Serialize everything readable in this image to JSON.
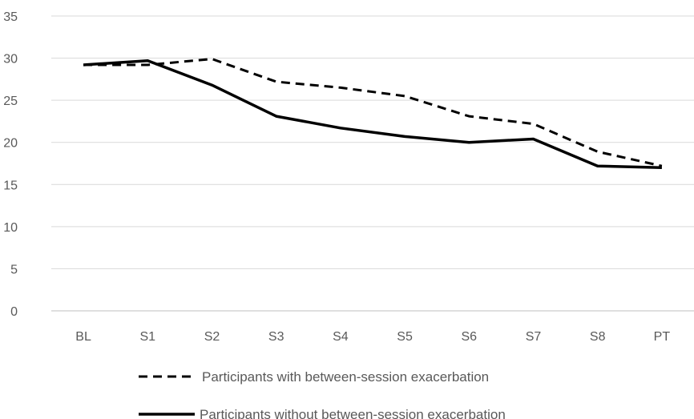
{
  "chart_data": {
    "type": "line",
    "categories": [
      "BL",
      "S1",
      "S2",
      "S3",
      "S4",
      "S5",
      "S6",
      "S7",
      "S8",
      "PT"
    ],
    "ylim": [
      0,
      35
    ],
    "yticks": [
      0,
      5,
      10,
      15,
      20,
      25,
      30,
      35
    ],
    "grid": true,
    "legend_position": "bottom",
    "series": [
      {
        "name": "Participants with between-session exacerbation",
        "style": "dashed",
        "color": "#000000",
        "values": [
          29.2,
          29.2,
          29.9,
          27.2,
          26.5,
          25.5,
          23.1,
          22.2,
          18.9,
          17.2
        ]
      },
      {
        "name": "Participants without between-session exacerbation",
        "style": "solid",
        "color": "#000000",
        "values": [
          29.2,
          29.7,
          26.8,
          23.1,
          21.7,
          20.7,
          20.0,
          20.4,
          17.2,
          17.0
        ]
      }
    ]
  }
}
